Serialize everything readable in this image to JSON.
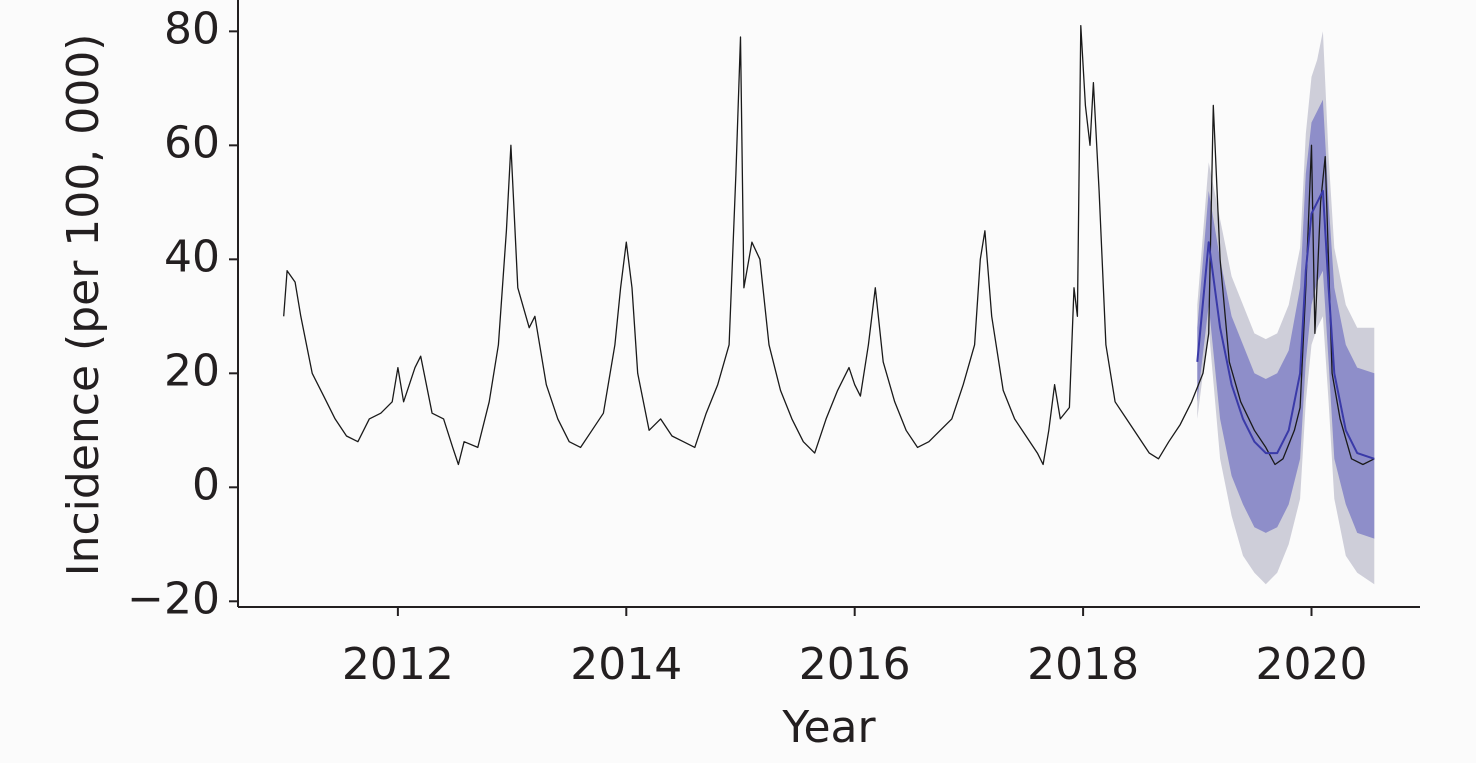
{
  "chart_data": {
    "type": "line",
    "xlabel": "Year",
    "ylabel": "Incidence (per 100, 000)",
    "xlim": [
      2010.6,
      2020.95
    ],
    "ylim": [
      -21,
      85.5
    ],
    "xticks": [
      2012,
      2014,
      2016,
      2018,
      2020
    ],
    "yticks": [
      {
        "value": -20,
        "label": "−20"
      },
      0,
      20,
      40,
      60,
      80
    ],
    "bands": [
      {
        "color": "#c6c6d2",
        "x": [
          2019.0,
          2019.1,
          2019.2,
          2019.3,
          2019.4,
          2019.5,
          2019.6,
          2019.7,
          2019.8,
          2019.9,
          2019.95,
          2020.0,
          2020.05,
          2020.1,
          2020.15,
          2020.2,
          2020.3,
          2020.4,
          2020.55
        ],
        "lower": [
          12,
          28,
          5,
          -5,
          -12,
          -15,
          -17,
          -15,
          -10,
          -2,
          15,
          25,
          28,
          30,
          15,
          -2,
          -12,
          -15,
          -17
        ],
        "upper": [
          32,
          57,
          47,
          37,
          32,
          27,
          26,
          27,
          32,
          42,
          62,
          72,
          75,
          80,
          58,
          42,
          32,
          28,
          28
        ]
      },
      {
        "color": "#8282c6",
        "x": [
          2019.0,
          2019.1,
          2019.2,
          2019.3,
          2019.4,
          2019.5,
          2019.6,
          2019.7,
          2019.8,
          2019.9,
          2019.95,
          2020.0,
          2020.05,
          2020.1,
          2020.15,
          2020.2,
          2020.3,
          2020.4,
          2020.55
        ],
        "lower": [
          15,
          32,
          12,
          2,
          -3,
          -7,
          -8,
          -7,
          -3,
          5,
          22,
          32,
          36,
          38,
          22,
          5,
          -3,
          -8,
          -9
        ],
        "upper": [
          28,
          52,
          40,
          30,
          25,
          20,
          19,
          20,
          24,
          35,
          55,
          64,
          66,
          68,
          50,
          35,
          25,
          21,
          20
        ]
      }
    ],
    "series": [
      {
        "color": "#1a1a1a",
        "x": [
          2011.0,
          2011.03,
          2011.1,
          2011.15,
          2011.25,
          2011.35,
          2011.45,
          2011.55,
          2011.65,
          2011.75,
          2011.85,
          2011.95,
          2012.0,
          2012.05,
          2012.15,
          2012.2,
          2012.3,
          2012.4,
          2012.48,
          2012.53,
          2012.58,
          2012.7,
          2012.8,
          2012.88,
          2012.95,
          2012.99,
          2013.05,
          2013.15,
          2013.2,
          2013.3,
          2013.4,
          2013.5,
          2013.6,
          2013.7,
          2013.8,
          2013.9,
          2013.95,
          2014.0,
          2014.05,
          2014.1,
          2014.2,
          2014.3,
          2014.4,
          2014.5,
          2014.6,
          2014.7,
          2014.8,
          2014.9,
          2014.96,
          2015.0,
          2015.03,
          2015.1,
          2015.17,
          2015.25,
          2015.35,
          2015.45,
          2015.55,
          2015.65,
          2015.75,
          2015.85,
          2015.95,
          2016.0,
          2016.05,
          2016.12,
          2016.18,
          2016.25,
          2016.35,
          2016.45,
          2016.55,
          2016.65,
          2016.75,
          2016.85,
          2016.95,
          2017.05,
          2017.1,
          2017.14,
          2017.2,
          2017.3,
          2017.4,
          2017.5,
          2017.6,
          2017.65,
          2017.7,
          2017.75,
          2017.8,
          2017.88,
          2017.92,
          2017.95,
          2017.98,
          2018.02,
          2018.06,
          2018.09,
          2018.14,
          2018.2,
          2018.28,
          2018.38,
          2018.48,
          2018.58,
          2018.66,
          2018.75,
          2018.85,
          2018.95,
          2019.05,
          2019.1,
          2019.14,
          2019.2,
          2019.28,
          2019.38,
          2019.5,
          2019.6,
          2019.68,
          2019.75,
          2019.85,
          2019.9,
          2019.95,
          2020.0,
          2020.03,
          2020.08,
          2020.12,
          2020.18,
          2020.25,
          2020.35,
          2020.45,
          2020.55
        ],
        "values": [
          30,
          38,
          36,
          30,
          20,
          16,
          12,
          9,
          8,
          12,
          13,
          15,
          21,
          15,
          21,
          23,
          13,
          12,
          7,
          4,
          8,
          7,
          15,
          25,
          45,
          60,
          35,
          28,
          30,
          18,
          12,
          8,
          7,
          10,
          13,
          25,
          35,
          43,
          35,
          20,
          10,
          12,
          9,
          8,
          7,
          13,
          18,
          25,
          55,
          79,
          35,
          43,
          40,
          25,
          17,
          12,
          8,
          6,
          12,
          17,
          21,
          18,
          16,
          25,
          35,
          22,
          15,
          10,
          7,
          8,
          10,
          12,
          18,
          25,
          40,
          45,
          30,
          17,
          12,
          9,
          6,
          4,
          10,
          18,
          12,
          14,
          35,
          30,
          81,
          67,
          60,
          71,
          52,
          25,
          15,
          12,
          9,
          6,
          5,
          8,
          11,
          15,
          20,
          27,
          67,
          40,
          22,
          15,
          10,
          7,
          4,
          5,
          10,
          14,
          35,
          60,
          27,
          50,
          58,
          20,
          12,
          5,
          4,
          5
        ]
      },
      {
        "color": "#3a3aa8",
        "x": [
          2019.0,
          2019.1,
          2019.2,
          2019.3,
          2019.4,
          2019.5,
          2019.6,
          2019.7,
          2019.8,
          2019.9,
          2019.95,
          2020.0,
          2020.05,
          2020.1,
          2020.15,
          2020.2,
          2020.3,
          2020.4,
          2020.55
        ],
        "values": [
          22,
          43,
          28,
          18,
          12,
          8,
          6,
          6,
          10,
          20,
          38,
          48,
          50,
          52,
          35,
          20,
          10,
          6,
          5
        ]
      }
    ]
  }
}
